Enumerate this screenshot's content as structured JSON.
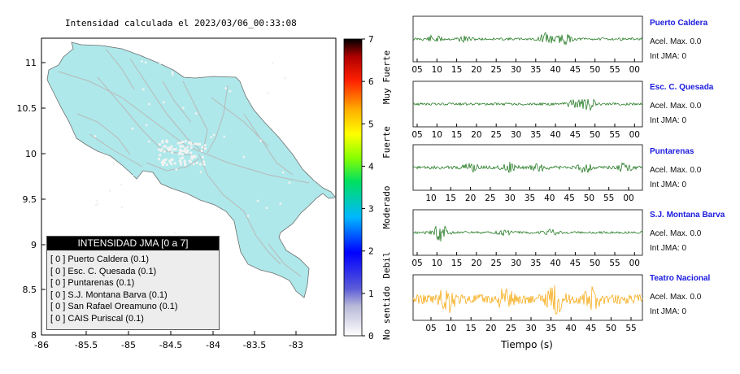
{
  "map": {
    "title": "Intensidad calculada el 2023/03/06_00:33:08",
    "x_ticks": [
      "-86",
      "-85.5",
      "-85",
      "-84.5",
      "-84",
      "-83.5",
      "-83"
    ],
    "y_ticks": [
      "11",
      "10.5",
      "10",
      "9.5",
      "9",
      "8.5",
      "8"
    ],
    "land_color": "#aee8ea",
    "road_color": "#b9b9b9"
  },
  "colorbar": {
    "ticks": [
      "0",
      "1",
      "2",
      "3",
      "4",
      "5",
      "6",
      "7"
    ],
    "labels": [
      "No sentido",
      "Debil",
      "Moderado",
      "Fuerte",
      "Muy Fuerte"
    ]
  },
  "legend": {
    "title": "INTENSIDAD JMA [0 a 7]",
    "items": [
      "[ 0 ]  Puerto Caldera (0.1)",
      "[ 0 ]  Esc. C. Quesada (0.1)",
      "[ 0 ]  Puntarenas (0.1)",
      "[ 0 ]  S.J. Montana Barva (0.1)",
      "[ 0 ]  San Rafael Oreamuno (0.1)",
      "[ 0 ]  CAIS Puriscal (0.1)"
    ]
  },
  "stations": [
    {
      "name": "Puerto Caldera",
      "accel": "Acel. Max. 0.0",
      "jma": "Int JMA: 0",
      "ticks": [
        "05",
        "10",
        "15",
        "20",
        "25",
        "30",
        "35",
        "40",
        "45",
        "50",
        "55",
        "00"
      ],
      "color": "#0f6e0f"
    },
    {
      "name": "Esc. C. Quesada",
      "accel": "Acel. Max. 0.0",
      "jma": "Int JMA: 0",
      "ticks": [
        "05",
        "10",
        "15",
        "20",
        "25",
        "30",
        "35",
        "40",
        "45",
        "50",
        "55",
        "00"
      ],
      "color": "#0f6e0f"
    },
    {
      "name": "Puntarenas",
      "accel": "Acel. Max. 0.0",
      "jma": "Int JMA: 0",
      "ticks": [
        "10",
        "15",
        "20",
        "25",
        "30",
        "35",
        "40",
        "45",
        "50",
        "55",
        "00"
      ],
      "color": "#0f6e0f"
    },
    {
      "name": "S.J. Montana Barva",
      "accel": "Acel. Max. 0.0",
      "jma": "Int JMA: 0",
      "ticks": [
        "05",
        "10",
        "15",
        "20",
        "25",
        "30",
        "35",
        "40",
        "45",
        "50",
        "55",
        "00"
      ],
      "color": "#0f6e0f"
    },
    {
      "name": "Teatro Nacional",
      "accel": "Acel. Max. 0.0",
      "jma": "Int JMA: 0",
      "ticks": [
        "05",
        "10",
        "15",
        "20",
        "25",
        "30",
        "35",
        "40",
        "45",
        "50",
        "55"
      ],
      "color": "#f5a300"
    }
  ],
  "time_axis_label": "Tiempo (s)"
}
